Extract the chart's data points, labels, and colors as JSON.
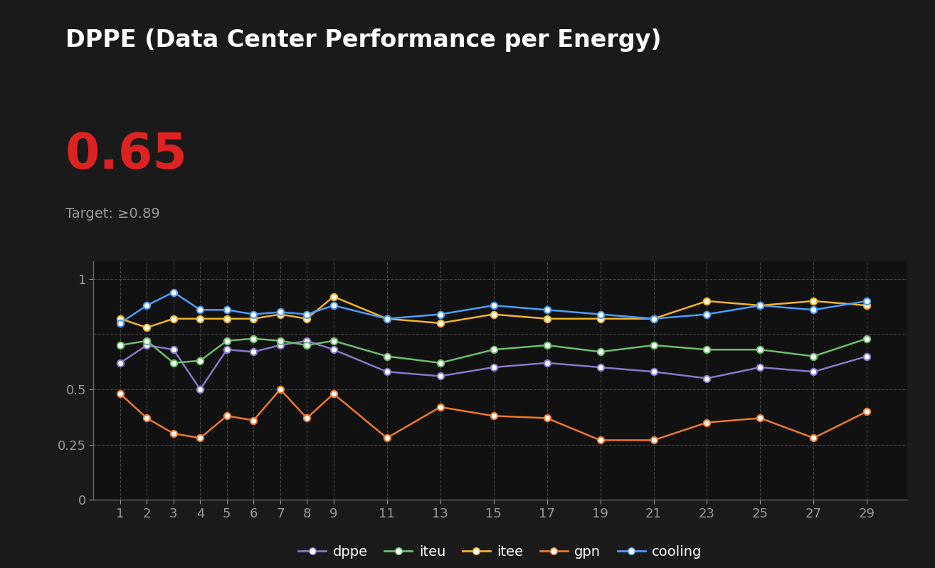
{
  "title": "DPPE (Data Center Performance per Energy)",
  "value_display": "0.65",
  "target_text": "Target: ≥0.89",
  "background_color": "#111111",
  "plot_bg_color": "#111111",
  "x_labels": [
    "1",
    "2",
    "3",
    "4",
    "5",
    "6",
    "7",
    "8",
    "9",
    "11",
    "13",
    "15",
    "17",
    "19",
    "21",
    "23",
    "25",
    "27",
    "29"
  ],
  "x_values": [
    1,
    2,
    3,
    4,
    5,
    6,
    7,
    8,
    9,
    11,
    13,
    15,
    17,
    19,
    21,
    23,
    25,
    27,
    29
  ],
  "series": {
    "dppe": {
      "color": "#8878cc",
      "values": [
        0.62,
        0.7,
        0.68,
        0.5,
        0.68,
        0.67,
        0.7,
        0.72,
        0.68,
        0.58,
        0.56,
        0.6,
        0.62,
        0.6,
        0.58,
        0.55,
        0.6,
        0.58,
        0.65
      ]
    },
    "iteu": {
      "color": "#6dbe6d",
      "values": [
        0.7,
        0.72,
        0.62,
        0.63,
        0.72,
        0.73,
        0.72,
        0.7,
        0.72,
        0.65,
        0.62,
        0.68,
        0.7,
        0.67,
        0.7,
        0.68,
        0.68,
        0.65,
        0.73
      ]
    },
    "itee": {
      "color": "#f0b429",
      "values": [
        0.82,
        0.78,
        0.82,
        0.82,
        0.82,
        0.82,
        0.84,
        0.82,
        0.92,
        0.82,
        0.8,
        0.84,
        0.82,
        0.82,
        0.82,
        0.9,
        0.88,
        0.9,
        0.88
      ]
    },
    "gpn": {
      "color": "#f07828",
      "values": [
        0.48,
        0.37,
        0.3,
        0.28,
        0.38,
        0.36,
        0.5,
        0.37,
        0.48,
        0.28,
        0.42,
        0.38,
        0.37,
        0.27,
        0.27,
        0.35,
        0.37,
        0.28,
        0.4
      ]
    },
    "cooling": {
      "color": "#4a9eff",
      "values": [
        0.8,
        0.88,
        0.94,
        0.86,
        0.86,
        0.84,
        0.85,
        0.84,
        0.88,
        0.82,
        0.84,
        0.88,
        0.86,
        0.84,
        0.82,
        0.84,
        0.88,
        0.86,
        0.9
      ]
    }
  },
  "ylim": [
    0,
    1.08
  ],
  "yticks": [
    0,
    0.25,
    0.5,
    1.0
  ],
  "ytick_labels": [
    "0",
    "0.25",
    "0.5",
    "1"
  ],
  "grid_yticks": [
    0,
    0.25,
    0.5,
    0.75,
    1.0
  ],
  "grid_color": "#444444",
  "axis_color": "#666666",
  "tick_color": "#999999",
  "title_fontsize": 24,
  "value_fontsize": 50,
  "target_fontsize": 14,
  "series_order": [
    "dppe",
    "iteu",
    "itee",
    "gpn",
    "cooling"
  ]
}
